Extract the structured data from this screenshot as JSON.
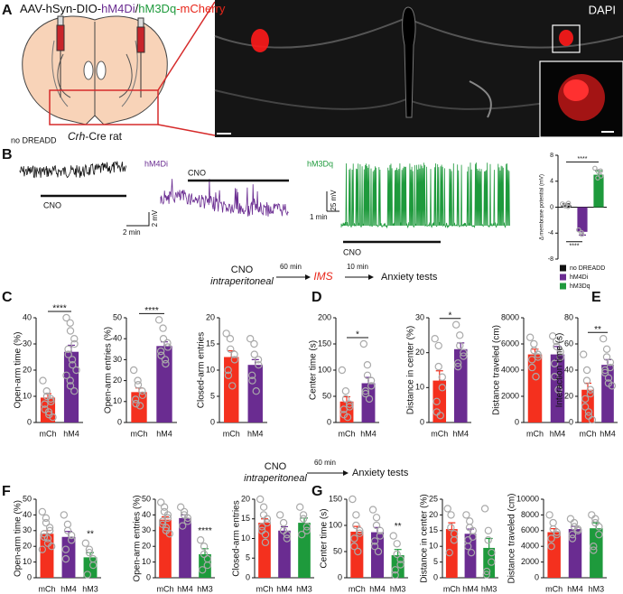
{
  "figure": {
    "panel_labels": [
      "A",
      "B",
      "C",
      "D",
      "E",
      "F",
      "G"
    ],
    "A": {
      "title": [
        {
          "text": "AAV-hSyn-DIO-",
          "color": "#111111"
        },
        {
          "text": "hM4Di",
          "color": "#6a2c91"
        },
        {
          "text": "/",
          "color": "#111111"
        },
        {
          "text": "hM3Dq",
          "color": "#1e9a3c"
        },
        {
          "text": "-mCherry",
          "color": "#e8261a"
        }
      ],
      "model_gene": "Crh",
      "model_rest": "-Cre rat",
      "image_label": "DAPI"
    },
    "B": {
      "traces": [
        {
          "label": "no DREADD",
          "drug": "CNO",
          "color": "#111111"
        },
        {
          "label": "hM4Di",
          "drug": "CNO",
          "color": "#6a2c91"
        },
        {
          "label": "hM3Dq",
          "drug": "CNO",
          "color": "#1e9a3c"
        }
      ],
      "scale_a": {
        "time": "2 min",
        "voltage": "2 mV"
      },
      "scale_b": {
        "time": "1 min",
        "voltage": "25 mV"
      }
    },
    "flow1": {
      "drug": "CNO",
      "route": "intraperitoneal",
      "wait1": "60 min",
      "stress": "IMS",
      "wait2": "10 min",
      "tests": "Anxiety tests"
    },
    "flow2": {
      "drug": "CNO",
      "route": "intraperitoneal",
      "wait1": "60 min",
      "tests": "Anxiety tests"
    }
  },
  "chart_data": [
    {
      "type": "bar",
      "ylabel": "Δ membrane potential (mV)",
      "categories": [
        null,
        null,
        null
      ],
      "values": [
        0.3,
        -3.8,
        5.0
      ],
      "errors": [
        0.2,
        0.5,
        0.6
      ],
      "colors": [
        "#111111",
        "#6a2c91",
        "#1e9a3c"
      ],
      "points": [
        [
          0.5,
          0.3,
          0.2,
          0.6,
          0.1
        ],
        [
          -3.5,
          -4.2,
          -3.9
        ],
        [
          6,
          5.5,
          4.5,
          4.8,
          5.6
        ]
      ],
      "legend": [
        "no DREADD",
        "hM4Di",
        "hM3Dq"
      ],
      "ylim": [
        -8,
        8
      ],
      "yticks": [
        -8,
        -4,
        0,
        4,
        8
      ],
      "significance": [
        {
          "label": "****",
          "between": [
            0,
            2
          ],
          "position": "above"
        },
        {
          "label": "****",
          "between": [
            0,
            1
          ],
          "position": "below"
        }
      ]
    },
    {
      "type": "bar",
      "ylabel": "Open-arm time (%)",
      "categories": [
        "mCh",
        "hM4"
      ],
      "values": [
        9.5,
        27
      ],
      "errors": [
        1.5,
        2.5
      ],
      "colors": [
        "#f4301e",
        "#6a2c91"
      ],
      "points": [
        [
          16,
          12,
          10,
          9,
          8,
          7,
          5,
          4,
          3,
          2
        ],
        [
          40,
          38,
          35,
          32,
          30,
          28,
          26,
          24,
          22,
          20,
          18,
          16,
          14,
          12
        ]
      ],
      "ylim": [
        0,
        40
      ],
      "yticks": [
        0,
        10,
        20,
        30,
        40
      ],
      "significance": [
        {
          "label": "****",
          "between": [
            0,
            1
          ]
        }
      ]
    },
    {
      "type": "bar",
      "ylabel": "Open-arm entries (%)",
      "categories": [
        "mCh",
        "hM4"
      ],
      "values": [
        14.5,
        36.5
      ],
      "errors": [
        2,
        2
      ],
      "colors": [
        "#f4301e",
        "#6a2c91"
      ],
      "points": [
        [
          25,
          20,
          18,
          15,
          13,
          11,
          9,
          8
        ],
        [
          49,
          45,
          40,
          38,
          36,
          34,
          32,
          30,
          28
        ]
      ],
      "ylim": [
        0,
        50
      ],
      "yticks": [
        0,
        10,
        20,
        30,
        40,
        50
      ],
      "significance": [
        {
          "label": "****",
          "between": [
            0,
            1
          ]
        }
      ]
    },
    {
      "type": "bar",
      "ylabel": "Closed-arm entries",
      "categories": [
        "mCh",
        "hM4"
      ],
      "values": [
        12.5,
        11
      ],
      "errors": [
        1.2,
        1
      ],
      "colors": [
        "#f4301e",
        "#6a2c91"
      ],
      "points": [
        [
          17,
          16,
          14,
          13,
          12,
          10,
          9,
          7
        ],
        [
          16,
          15,
          13,
          12,
          11,
          9,
          8,
          6
        ]
      ],
      "ylim": [
        0,
        20
      ],
      "yticks": [
        0,
        5,
        10,
        15,
        20
      ],
      "significance": []
    },
    {
      "type": "bar",
      "ylabel": "Center time (s)",
      "categories": [
        "mCh",
        "hM4"
      ],
      "values": [
        40,
        75
      ],
      "errors": [
        9,
        11
      ],
      "colors": [
        "#f4301e",
        "#6a2c91"
      ],
      "points": [
        [
          100,
          60,
          45,
          35,
          30,
          25,
          15,
          10
        ],
        [
          150,
          110,
          90,
          80,
          70,
          60,
          55,
          45
        ]
      ],
      "ylim": [
        0,
        200
      ],
      "yticks": [
        0,
        50,
        100,
        150,
        200
      ],
      "significance": [
        {
          "label": "*",
          "between": [
            0,
            1
          ]
        }
      ]
    },
    {
      "type": "bar",
      "ylabel": "Distance in center (%)",
      "categories": [
        "mCh",
        "hM4"
      ],
      "values": [
        12,
        21
      ],
      "errors": [
        2.8,
        1.8
      ],
      "colors": [
        "#f4301e",
        "#6a2c91"
      ],
      "points": [
        [
          24,
          22,
          16,
          13,
          10,
          6,
          3,
          2
        ],
        [
          28,
          25,
          22,
          20,
          19,
          17,
          16
        ]
      ],
      "ylim": [
        0,
        30
      ],
      "yticks": [
        0,
        10,
        20,
        30
      ],
      "significance": [
        {
          "label": "*",
          "between": [
            0,
            1
          ]
        }
      ]
    },
    {
      "type": "bar",
      "ylabel": "Distance traveled (cm)",
      "categories": [
        "mCh",
        "hM4"
      ],
      "values": [
        5200,
        5200
      ],
      "errors": [
        400,
        600
      ],
      "colors": [
        "#f4301e",
        "#6a2c91"
      ],
      "points": [
        [
          6500,
          6000,
          5500,
          5200,
          5000,
          4800,
          4200,
          3500
        ],
        [
          6600,
          6200,
          5800,
          5400,
          5000,
          4500,
          3500,
          2500
        ]
      ],
      "ylim": [
        0,
        8000
      ],
      "yticks": [
        0,
        2000,
        4000,
        6000,
        8000
      ],
      "significance": []
    },
    {
      "type": "bar",
      "ylabel": "Interaction time (s)",
      "categories": [
        "mCh",
        "hM4"
      ],
      "values": [
        25,
        44
      ],
      "errors": [
        5,
        4
      ],
      "colors": [
        "#f4301e",
        "#6a2c91"
      ],
      "points": [
        [
          52,
          40,
          32,
          25,
          22,
          18,
          12,
          8,
          5,
          2
        ],
        [
          64,
          56,
          50,
          46,
          42,
          40,
          38,
          34,
          30,
          28
        ]
      ],
      "ylim": [
        0,
        80
      ],
      "yticks": [
        0,
        20,
        40,
        60,
        80
      ],
      "significance": [
        {
          "label": "**",
          "between": [
            0,
            1
          ]
        }
      ]
    },
    {
      "type": "bar",
      "ylabel": "Open-arm time (%)",
      "categories": [
        "mCh",
        "hM4",
        "hM3"
      ],
      "values": [
        28,
        26,
        13
      ],
      "errors": [
        2,
        3.5,
        3
      ],
      "colors": [
        "#f4301e",
        "#6a2c91",
        "#1e9a3c"
      ],
      "points": [
        [
          42,
          38,
          35,
          32,
          30,
          28,
          26,
          25,
          22,
          20,
          18
        ],
        [
          40,
          34,
          30,
          27,
          24,
          18,
          12
        ],
        [
          22,
          18,
          16,
          12,
          8,
          2
        ]
      ],
      "ylim": [
        0,
        50
      ],
      "yticks": [
        0,
        10,
        20,
        30,
        40,
        50
      ],
      "significance": [
        {
          "label": "**",
          "between": [
            2
          ]
        }
      ]
    },
    {
      "type": "bar",
      "ylabel": "Open-arm entries (%)",
      "categories": [
        "mCh",
        "hM4",
        "hM3"
      ],
      "values": [
        37,
        38,
        15
      ],
      "errors": [
        1.8,
        2,
        3.5
      ],
      "colors": [
        "#f4301e",
        "#6a2c91",
        "#1e9a3c"
      ],
      "points": [
        [
          48,
          45,
          42,
          40,
          38,
          36,
          34,
          32,
          30,
          28
        ],
        [
          45,
          42,
          40,
          38,
          36,
          33
        ],
        [
          24,
          20,
          15,
          12,
          8,
          5
        ]
      ],
      "ylim": [
        0,
        50
      ],
      "yticks": [
        0,
        10,
        20,
        30,
        40,
        50
      ],
      "significance": [
        {
          "label": "****",
          "between": [
            2
          ]
        }
      ]
    },
    {
      "type": "bar",
      "ylabel": "Closed-arm entries",
      "categories": [
        "mCh",
        "hM4",
        "hM3"
      ],
      "values": [
        14,
        12,
        14
      ],
      "errors": [
        1,
        1,
        1.2
      ],
      "colors": [
        "#f4301e",
        "#6a2c91",
        "#1e9a3c"
      ],
      "points": [
        [
          20,
          18,
          16,
          15,
          14,
          13,
          12,
          11,
          9
        ],
        [
          16,
          14,
          12,
          11,
          10
        ],
        [
          18,
          16,
          15,
          13,
          12,
          11
        ]
      ],
      "ylim": [
        0,
        20
      ],
      "yticks": [
        0,
        5,
        10,
        15,
        20
      ],
      "significance": []
    },
    {
      "type": "bar",
      "ylabel": "Center time (s)",
      "categories": [
        "mCh",
        "hM4",
        "hM3"
      ],
      "values": [
        88,
        87,
        43
      ],
      "errors": [
        10,
        9,
        11
      ],
      "colors": [
        "#f4301e",
        "#6a2c91",
        "#1e9a3c"
      ],
      "points": [
        [
          150,
          120,
          100,
          90,
          85,
          75,
          60,
          50
        ],
        [
          130,
          115,
          100,
          90,
          80,
          70,
          60,
          50
        ],
        [
          80,
          65,
          45,
          35,
          25,
          15,
          5
        ]
      ],
      "ylim": [
        0,
        150
      ],
      "yticks": [
        0,
        50,
        100,
        150
      ],
      "significance": [
        {
          "label": "**",
          "between": [
            2
          ]
        }
      ]
    },
    {
      "type": "bar",
      "ylabel": "Distance in center (%)",
      "categories": [
        "mCh",
        "hM4",
        "hM3"
      ],
      "values": [
        15.5,
        14,
        9.5
      ],
      "errors": [
        2,
        1.5,
        3
      ],
      "colors": [
        "#f4301e",
        "#6a2c91",
        "#1e9a3c"
      ],
      "points": [
        [
          22,
          20,
          16,
          14,
          12,
          8
        ],
        [
          20,
          18,
          16,
          15,
          13,
          12,
          10,
          8
        ],
        [
          22,
          15,
          12,
          8,
          5,
          2,
          1
        ]
      ],
      "ylim": [
        0,
        25
      ],
      "yticks": [
        0,
        5,
        10,
        15,
        20,
        25
      ],
      "significance": []
    },
    {
      "type": "bar",
      "ylabel": "Distance traveled (cm)",
      "categories": [
        "mCh",
        "hM4",
        "hM3"
      ],
      "values": [
        5800,
        6200,
        6300
      ],
      "errors": [
        450,
        350,
        700
      ],
      "colors": [
        "#f4301e",
        "#6a2c91",
        "#1e9a3c"
      ],
      "points": [
        [
          8000,
          7000,
          6200,
          5800,
          5500,
          5000,
          4000
        ],
        [
          7500,
          7000,
          6500,
          6200,
          6000,
          5500,
          5000
        ],
        [
          8000,
          7500,
          7000,
          6500,
          5500,
          4000,
          3500
        ]
      ],
      "ylim": [
        0,
        10000
      ],
      "yticks": [
        0,
        2000,
        4000,
        6000,
        8000,
        10000
      ],
      "significance": []
    }
  ]
}
